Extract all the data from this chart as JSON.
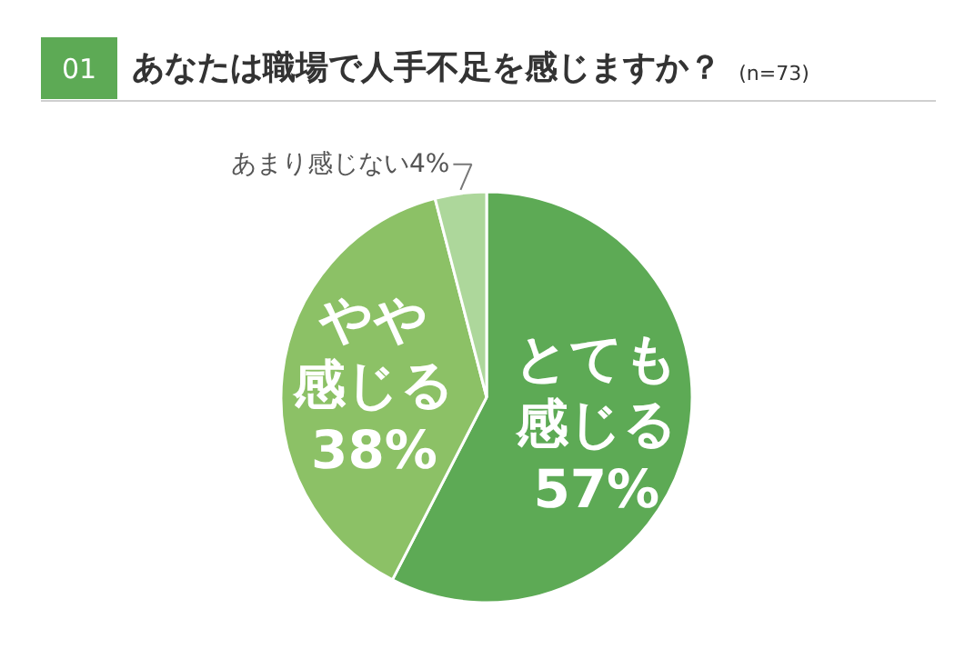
{
  "chart_data": {
    "type": "pie",
    "title": "あなたは職場で人手不足を感じますか？",
    "subtitle": "(n=73)",
    "annotations": [
      "01"
    ],
    "categories": [
      "とても感じる",
      "やや感じる",
      "あまり感じない"
    ],
    "values": [
      57,
      38,
      4
    ],
    "value_labels": [
      "57%",
      "38%",
      "4%"
    ],
    "colors": [
      "#5daa55",
      "#8cc166",
      "#add79b"
    ]
  }
}
